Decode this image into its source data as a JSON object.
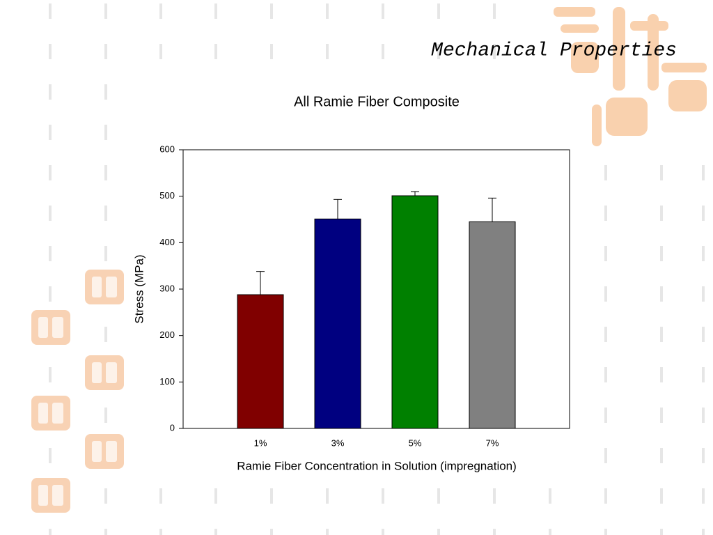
{
  "slide_title": "Mechanical Properties",
  "chart_data": {
    "type": "bar",
    "title": "All Ramie Fiber Composite",
    "x_label": "Ramie Fiber Concentration in Solution (impregnation)",
    "y_label": "Stress (MPa)",
    "categories": [
      "1%",
      "3%",
      "5%",
      "7%"
    ],
    "values": [
      288,
      451,
      501,
      445
    ],
    "errors": [
      50,
      42,
      9,
      51
    ],
    "colors": [
      "#800000",
      "#000080",
      "#008000",
      "#808080"
    ],
    "ylim": [
      0,
      600
    ],
    "yticks": [
      0,
      100,
      200,
      300,
      400,
      500,
      600
    ],
    "grid": false
  }
}
